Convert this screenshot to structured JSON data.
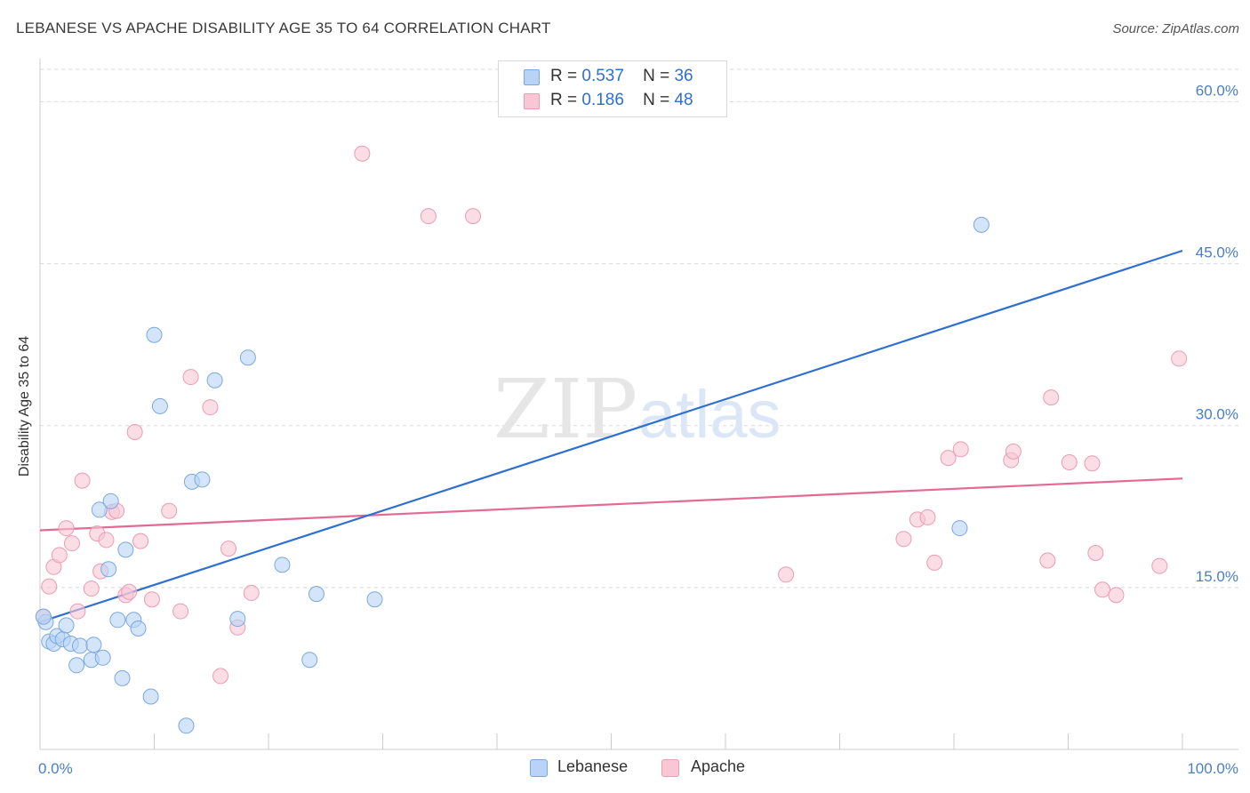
{
  "header": {
    "title": "LEBANESE VS APACHE DISABILITY AGE 35 TO 64 CORRELATION CHART",
    "source": "Source: ZipAtlas.com"
  },
  "legend_top": {
    "rows": [
      {
        "r_label": "R =",
        "r_value": "0.537",
        "n_label": "N =",
        "n_value": "36"
      },
      {
        "r_label": "R =",
        "r_value": "0.186",
        "n_label": "N =",
        "n_value": "48"
      }
    ]
  },
  "colors": {
    "lebanese_fill": "#b8d3f5",
    "lebanese_stroke": "#7aa8e0",
    "lebanese_line": "#2f6fcf",
    "apache_fill": "#f9c6d6",
    "apache_stroke": "#ec9bb4",
    "apache_line": "#e26a94",
    "tick_label": "#4a7ec8",
    "grid": "#d8d8d8"
  },
  "chart_data": {
    "type": "scatter",
    "title": "LEBANESE VS APACHE DISABILITY AGE 35 TO 64 CORRELATION CHART",
    "xlabel": "",
    "ylabel": "Disability Age 35 to 64",
    "xlim": [
      0,
      100
    ],
    "ylim": [
      0,
      63
    ],
    "x_tick_labels": [
      {
        "value": 0,
        "label": "0.0%"
      },
      {
        "value": 100,
        "label": "100.0%"
      }
    ],
    "y_tick_labels": [
      {
        "value": 15,
        "label": "15.0%"
      },
      {
        "value": 30,
        "label": "30.0%"
      },
      {
        "value": 45,
        "label": "45.0%"
      },
      {
        "value": 60,
        "label": "60.0%"
      }
    ],
    "grid": "horizontal dashed",
    "legend_position": "bottom",
    "watermark": "ZIPatlas",
    "series": [
      {
        "name": "Lebanese",
        "r": 0.537,
        "n": 36,
        "trend": {
          "x": [
            0,
            100
          ],
          "y": [
            11.8,
            46.2
          ]
        },
        "points": [
          [
            0.5,
            11.8
          ],
          [
            0.8,
            10.0
          ],
          [
            1.2,
            9.8
          ],
          [
            1.5,
            10.5
          ],
          [
            2.0,
            10.2
          ],
          [
            2.3,
            11.5
          ],
          [
            2.7,
            9.8
          ],
          [
            3.2,
            7.8
          ],
          [
            3.5,
            9.6
          ],
          [
            4.5,
            8.3
          ],
          [
            4.7,
            9.7
          ],
          [
            5.5,
            8.5
          ],
          [
            5.2,
            22.2
          ],
          [
            6.2,
            23.0
          ],
          [
            6.0,
            16.7
          ],
          [
            7.2,
            6.6
          ],
          [
            6.8,
            12.0
          ],
          [
            7.5,
            18.5
          ],
          [
            8.2,
            12.0
          ],
          [
            8.6,
            11.2
          ],
          [
            9.7,
            4.9
          ],
          [
            10.0,
            38.4
          ],
          [
            10.5,
            31.8
          ],
          [
            12.8,
            2.2
          ],
          [
            13.3,
            24.8
          ],
          [
            14.2,
            25.0
          ],
          [
            15.3,
            34.2
          ],
          [
            17.3,
            12.1
          ],
          [
            18.2,
            36.3
          ],
          [
            21.2,
            17.1
          ],
          [
            23.6,
            8.3
          ],
          [
            24.2,
            14.4
          ],
          [
            29.3,
            13.9
          ],
          [
            80.5,
            20.5
          ],
          [
            82.4,
            48.6
          ],
          [
            0.3,
            12.3
          ]
        ]
      },
      {
        "name": "Apache",
        "r": 0.186,
        "n": 48,
        "trend": {
          "x": [
            0,
            100
          ],
          "y": [
            20.3,
            25.1
          ]
        },
        "points": [
          [
            0.3,
            12.3
          ],
          [
            0.8,
            15.1
          ],
          [
            1.2,
            16.9
          ],
          [
            1.7,
            18.0
          ],
          [
            2.3,
            20.5
          ],
          [
            2.8,
            19.1
          ],
          [
            3.3,
            12.8
          ],
          [
            3.7,
            24.9
          ],
          [
            4.5,
            14.9
          ],
          [
            5.0,
            20.0
          ],
          [
            5.3,
            16.5
          ],
          [
            5.8,
            19.4
          ],
          [
            6.3,
            22.0
          ],
          [
            6.7,
            22.1
          ],
          [
            7.5,
            14.3
          ],
          [
            7.8,
            14.6
          ],
          [
            8.3,
            29.4
          ],
          [
            8.8,
            19.3
          ],
          [
            9.8,
            13.9
          ],
          [
            11.3,
            22.1
          ],
          [
            12.3,
            12.8
          ],
          [
            13.2,
            34.5
          ],
          [
            14.9,
            31.7
          ],
          [
            15.8,
            6.8
          ],
          [
            16.5,
            18.6
          ],
          [
            17.3,
            11.3
          ],
          [
            18.5,
            14.5
          ],
          [
            28.2,
            55.2
          ],
          [
            34.0,
            49.4
          ],
          [
            37.9,
            49.4
          ],
          [
            65.3,
            16.2
          ],
          [
            75.6,
            19.5
          ],
          [
            76.8,
            21.3
          ],
          [
            77.7,
            21.5
          ],
          [
            78.3,
            17.3
          ],
          [
            79.5,
            27.0
          ],
          [
            80.6,
            27.8
          ],
          [
            85.0,
            26.8
          ],
          [
            85.2,
            27.6
          ],
          [
            88.2,
            17.5
          ],
          [
            88.5,
            32.6
          ],
          [
            90.1,
            26.6
          ],
          [
            92.1,
            26.5
          ],
          [
            92.4,
            18.2
          ],
          [
            93.0,
            14.8
          ],
          [
            94.2,
            14.3
          ],
          [
            98.0,
            17.0
          ],
          [
            99.7,
            36.2
          ]
        ]
      }
    ]
  }
}
